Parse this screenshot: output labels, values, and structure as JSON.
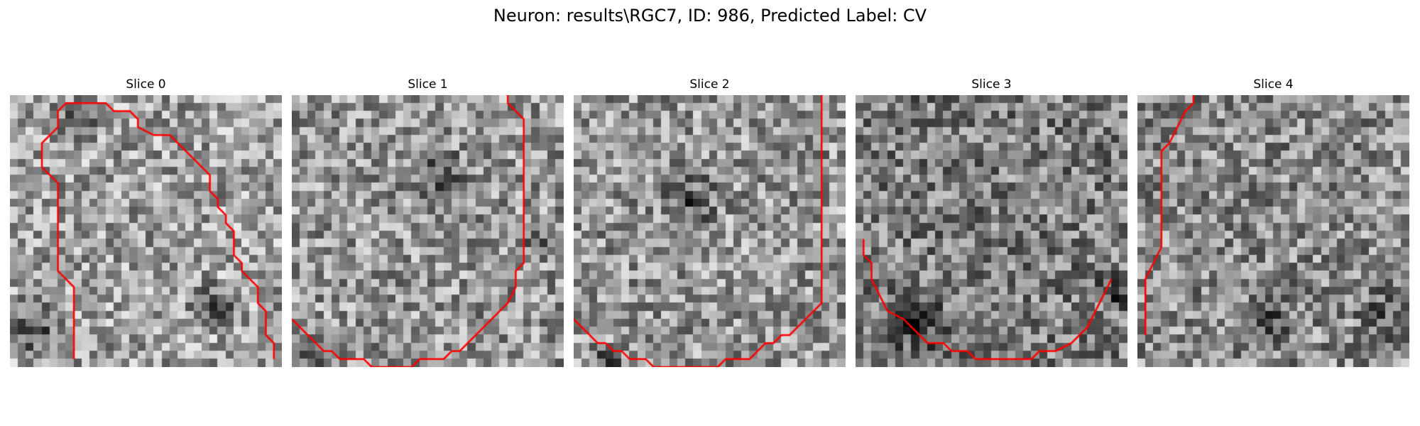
{
  "figure": {
    "title": "Neuron: results\\RGC7, ID: 986, Predicted Label: CV",
    "contour_color": "#ff0000"
  },
  "slices": [
    {
      "title": "Slice 0",
      "mean_intensity": 160,
      "contour": [
        [
          8,
          33
        ],
        [
          8,
          24
        ],
        [
          6,
          22
        ],
        [
          6,
          11
        ],
        [
          4,
          9
        ],
        [
          4,
          6
        ],
        [
          6,
          4
        ],
        [
          6,
          2
        ],
        [
          7,
          1
        ],
        [
          12,
          1
        ],
        [
          13,
          2
        ],
        [
          15,
          2
        ],
        [
          16,
          3
        ],
        [
          16,
          4
        ],
        [
          18,
          5
        ],
        [
          20,
          5
        ],
        [
          21,
          6
        ],
        [
          22,
          7
        ],
        [
          23,
          8
        ],
        [
          24,
          9
        ],
        [
          25,
          10
        ],
        [
          25,
          12
        ],
        [
          26,
          13
        ],
        [
          26,
          14
        ],
        [
          27,
          15
        ],
        [
          27,
          16
        ],
        [
          28,
          17
        ],
        [
          28,
          20
        ],
        [
          29,
          21
        ],
        [
          29,
          22
        ],
        [
          30,
          23
        ],
        [
          31,
          24
        ],
        [
          31,
          26
        ],
        [
          32,
          27
        ],
        [
          32,
          30
        ],
        [
          33,
          31
        ],
        [
          33,
          33
        ]
      ],
      "dark_zones": [
        [
          8,
          3,
          4
        ],
        [
          25,
          26,
          4
        ],
        [
          3,
          29,
          5
        ]
      ]
    },
    {
      "title": "Slice 1",
      "mean_intensity": 150,
      "contour": [
        [
          0,
          28
        ],
        [
          2,
          30
        ],
        [
          4,
          32
        ],
        [
          5,
          32
        ],
        [
          6,
          33
        ],
        [
          9,
          33
        ],
        [
          10,
          34
        ],
        [
          15,
          34
        ],
        [
          16,
          33
        ],
        [
          19,
          33
        ],
        [
          20,
          32
        ],
        [
          21,
          32
        ],
        [
          23,
          30
        ],
        [
          25,
          28
        ],
        [
          27,
          26
        ],
        [
          28,
          24
        ],
        [
          28,
          22
        ],
        [
          29,
          21
        ],
        [
          29,
          3
        ],
        [
          28,
          2
        ],
        [
          27,
          1
        ],
        [
          27,
          0
        ]
      ],
      "dark_zones": [
        [
          18,
          10,
          5
        ],
        [
          3,
          32,
          4
        ],
        [
          31,
          18,
          3
        ]
      ]
    },
    {
      "title": "Slice 2",
      "mean_intensity": 150,
      "contour": [
        [
          0,
          28
        ],
        [
          2,
          30
        ],
        [
          3,
          31
        ],
        [
          4,
          31
        ],
        [
          5,
          32
        ],
        [
          6,
          32
        ],
        [
          7,
          33
        ],
        [
          9,
          33
        ],
        [
          10,
          34
        ],
        [
          18,
          34
        ],
        [
          19,
          33
        ],
        [
          22,
          33
        ],
        [
          23,
          32
        ],
        [
          24,
          31
        ],
        [
          25,
          31
        ],
        [
          26,
          30
        ],
        [
          27,
          30
        ],
        [
          28,
          29
        ],
        [
          29,
          28
        ],
        [
          30,
          27
        ],
        [
          31,
          26
        ],
        [
          31,
          0
        ]
      ],
      "dark_zones": [
        [
          14,
          13,
          5
        ],
        [
          4,
          33,
          3
        ]
      ]
    },
    {
      "title": "Slice 3",
      "mean_intensity": 125,
      "contour": [
        [
          1,
          18
        ],
        [
          1,
          20
        ],
        [
          2,
          21
        ],
        [
          2,
          23
        ],
        [
          3,
          25
        ],
        [
          4,
          27
        ],
        [
          6,
          28
        ],
        [
          8,
          30
        ],
        [
          9,
          31
        ],
        [
          11,
          31
        ],
        [
          12,
          32
        ],
        [
          14,
          32
        ],
        [
          15,
          33
        ],
        [
          20,
          33
        ],
        [
          22,
          33
        ],
        [
          23,
          32
        ],
        [
          25,
          32
        ],
        [
          27,
          31
        ],
        [
          29,
          29
        ],
        [
          30,
          27
        ],
        [
          31,
          25
        ],
        [
          32,
          23
        ]
      ],
      "dark_zones": [
        [
          7,
          28,
          5
        ],
        [
          32,
          24,
          3
        ]
      ]
    },
    {
      "title": "Slice 4",
      "mean_intensity": 140,
      "contour": [
        [
          1,
          30
        ],
        [
          1,
          23
        ],
        [
          2,
          21
        ],
        [
          3,
          19
        ],
        [
          3,
          7
        ],
        [
          4,
          6
        ],
        [
          5,
          4
        ],
        [
          6,
          2
        ],
        [
          7,
          1
        ],
        [
          7,
          0
        ]
      ],
      "dark_zones": [
        [
          16,
          28,
          4
        ],
        [
          30,
          27,
          4
        ]
      ]
    }
  ]
}
